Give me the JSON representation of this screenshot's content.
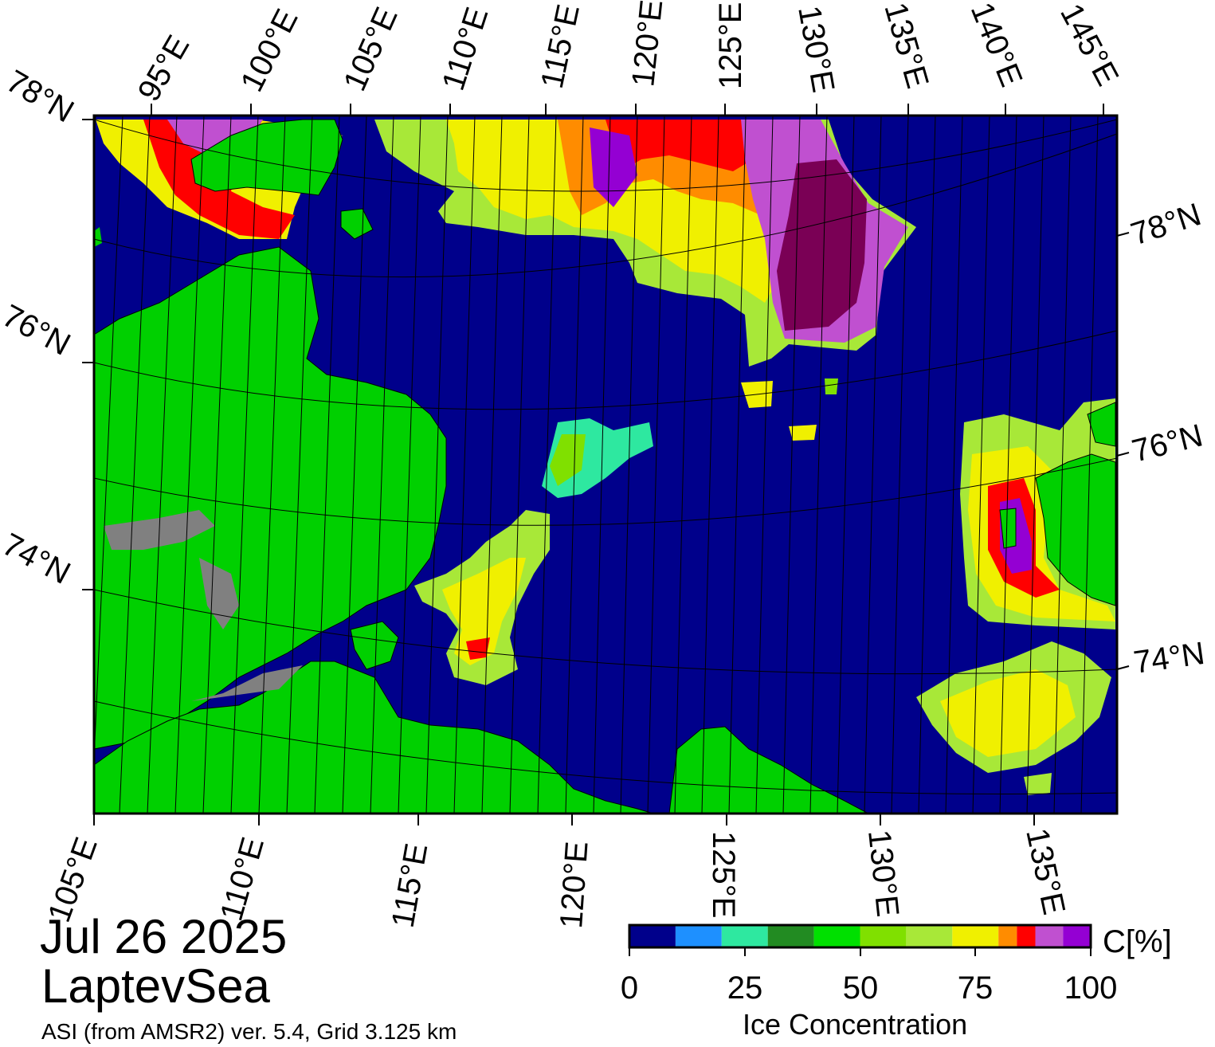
{
  "map": {
    "date": "Jul 26 2025",
    "region": "LaptevSea",
    "source": "ASI (from AMSR2) ver. 5.4,  Grid 3.125 km",
    "top_lon_labels": [
      "95°E",
      "100°E",
      "105°E",
      "110°E",
      "115°E",
      "120°E",
      "125°E",
      "130°E",
      "135°E",
      "140°E",
      "145°E"
    ],
    "bottom_lon_labels": [
      "105°E",
      "110°E",
      "115°E",
      "120°E",
      "125°E",
      "130°E",
      "135°E"
    ],
    "left_lat_labels": [
      "78°N",
      "76°N",
      "74°N"
    ],
    "right_lat_labels": [
      "78°N",
      "76°N",
      "74°N"
    ],
    "colors": {
      "ocean": "#00008b",
      "land": "#00d000",
      "land_ice": "#808080",
      "graticule": "#000000"
    }
  },
  "colorbar": {
    "title": "Ice Concentration",
    "unit": "C[%]",
    "tick_labels": [
      "0",
      "25",
      "50",
      "75",
      "100"
    ],
    "range": [
      0,
      100
    ],
    "bins": [
      {
        "from": 0,
        "to": 10,
        "color": "#00008b"
      },
      {
        "from": 10,
        "to": 20,
        "color": "#1e90ff"
      },
      {
        "from": 20,
        "to": 30,
        "color": "#2ee8a0"
      },
      {
        "from": 30,
        "to": 40,
        "color": "#228b22"
      },
      {
        "from": 40,
        "to": 50,
        "color": "#00e000"
      },
      {
        "from": 50,
        "to": 60,
        "color": "#80e000"
      },
      {
        "from": 60,
        "to": 70,
        "color": "#a8e838"
      },
      {
        "from": 70,
        "to": 80,
        "color": "#f0f000"
      },
      {
        "from": 80,
        "to": 84,
        "color": "#ff8c00"
      },
      {
        "from": 84,
        "to": 88,
        "color": "#ff0000"
      },
      {
        "from": 88,
        "to": 94,
        "color": "#c050d0"
      },
      {
        "from": 94,
        "to": 100,
        "color": "#9400d3"
      }
    ]
  }
}
